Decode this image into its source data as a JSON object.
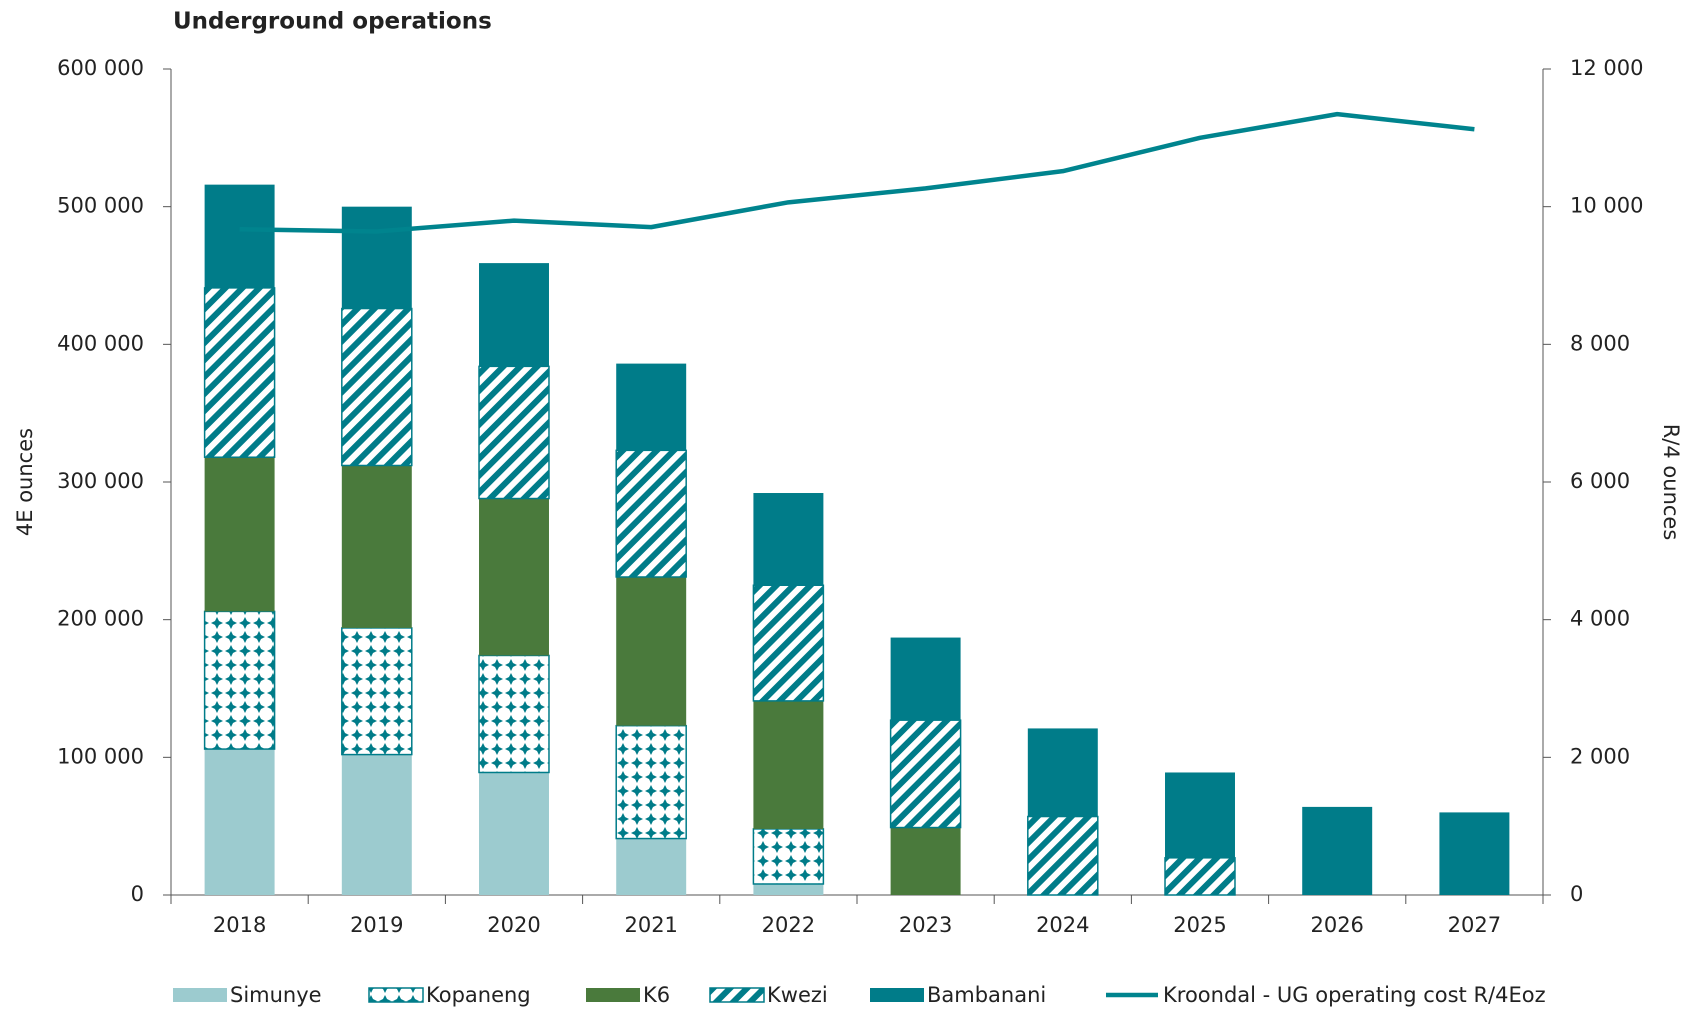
{
  "chart_data": {
    "type": "bar",
    "stacked": true,
    "title": "Underground operations",
    "y_label": "4E ounces",
    "y2_label": "R/4 ounces",
    "categories": [
      "2018",
      "2019",
      "2020",
      "2021",
      "2022",
      "2023",
      "2024",
      "2025",
      "2026",
      "2027"
    ],
    "series": [
      {
        "name": "Simunye",
        "color": "#9ccbcf",
        "pattern": "solid",
        "values": [
          106000,
          102000,
          89000,
          41000,
          8000,
          0,
          0,
          0,
          0,
          0
        ]
      },
      {
        "name": "Kopaneng",
        "color": "#007c89",
        "pattern": "dots",
        "values": [
          100000,
          92000,
          85000,
          82000,
          40000,
          0,
          0,
          0,
          0,
          0
        ]
      },
      {
        "name": "K6",
        "color": "#4a7a3c",
        "pattern": "solid",
        "values": [
          112000,
          118000,
          114000,
          108000,
          93000,
          49000,
          0,
          0,
          0,
          0
        ]
      },
      {
        "name": "Kwezi",
        "color": "#007c89",
        "pattern": "stripes",
        "values": [
          123000,
          114000,
          96000,
          92000,
          84000,
          78000,
          57000,
          27000,
          0,
          0
        ]
      },
      {
        "name": "Bambanani",
        "color": "#007c89",
        "pattern": "solid",
        "values": [
          75000,
          74000,
          75000,
          63000,
          67000,
          60000,
          64000,
          62000,
          64000,
          60000
        ]
      },
      {
        "name": "Kroondal - UG operating cost R/4Eoz",
        "color": "#00848e",
        "type": "line",
        "axis": "y2",
        "values": [
          9672,
          9640,
          9797,
          9703,
          10063,
          10266,
          10516,
          11000,
          11344,
          11125
        ]
      }
    ],
    "ylim": [
      0,
      600000
    ],
    "yticks": [
      0,
      {
        "value": 100000,
        "label": "100 000"
      },
      {
        "value": 200000,
        "label": "200 000"
      },
      {
        "value": 300000,
        "label": "300 000"
      },
      {
        "value": 400000,
        "label": "400 000"
      },
      {
        "value": 500000,
        "label": "500 000"
      },
      {
        "value": 600000,
        "label": "600 000"
      }
    ],
    "y2lim": [
      0,
      12000
    ],
    "y2ticks": [
      0,
      {
        "value": 2000,
        "label": "2 000"
      },
      {
        "value": 4000,
        "label": "4 000"
      },
      {
        "value": 6000,
        "label": "6 000"
      },
      {
        "value": 8000,
        "label": "8 000"
      },
      {
        "value": 10000,
        "label": "10 000"
      },
      {
        "value": 12000,
        "label": "12 000"
      }
    ],
    "grid": false,
    "legend": "bottom"
  }
}
